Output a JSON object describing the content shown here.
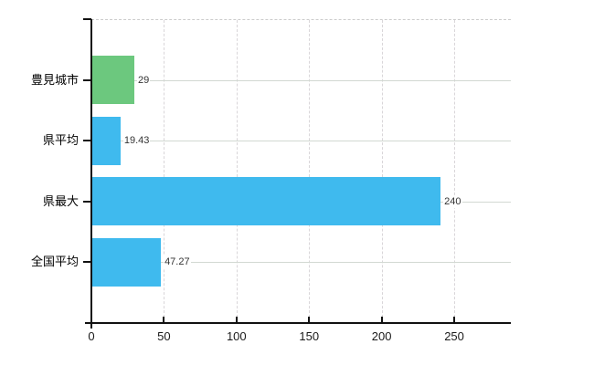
{
  "chart_data": {
    "type": "bar",
    "orientation": "horizontal",
    "title": "",
    "xlabel": "",
    "ylabel": "",
    "categories": [
      "豊見城市",
      "県平均",
      "県最大",
      "全国平均"
    ],
    "values": [
      29,
      19.43,
      240,
      47.27
    ],
    "value_labels": [
      "29",
      "19.43",
      "240",
      "47.27"
    ],
    "bar_colors": [
      "#6cc87e",
      "#3fbaee",
      "#3fbaee",
      "#3fbaee"
    ],
    "xticks": [
      0,
      50,
      100,
      150,
      200,
      250
    ],
    "xtick_labels": [
      "0",
      "50",
      "100",
      "150",
      "200",
      "250"
    ],
    "xlim": [
      0,
      289
    ],
    "grid": true,
    "legend": false
  },
  "colors": {
    "background": "#ffffff",
    "axis": "#111111",
    "gridline_horizontal": "#d2d8d2",
    "gridline_vertical": "#d9d6d9",
    "value_label_text": "#333333",
    "category_label_text": "#000000",
    "bar_blue": "#3fbaee",
    "bar_green": "#6cc87e"
  }
}
